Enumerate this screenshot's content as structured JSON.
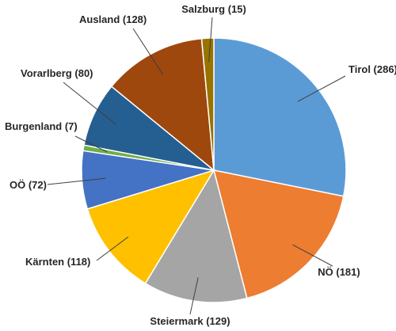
{
  "chart_data": {
    "type": "pie",
    "start": "top, clockwise",
    "slices": [
      {
        "label": "Tirol (286)",
        "value": 286,
        "color": "#5b9bd5"
      },
      {
        "label": "NÖ (181)",
        "value": 181,
        "color": "#ed7d31"
      },
      {
        "label": "Steiermark (129)",
        "value": 129,
        "color": "#a5a5a5"
      },
      {
        "label": "Kärnten (118)",
        "value": 118,
        "color": "#ffc000"
      },
      {
        "label": "OÖ (72)",
        "value": 72,
        "color": "#4472c4"
      },
      {
        "label": "Burgenland (7)",
        "value": 7,
        "color": "#70ad47"
      },
      {
        "label": "Vorarlberg (80)",
        "value": 80,
        "color": "#255e91"
      },
      {
        "label": "Ausland (128)",
        "value": 128,
        "color": "#9e480e"
      },
      {
        "label": "Salzburg (15)",
        "value": 15,
        "color": "#997300"
      }
    ]
  }
}
